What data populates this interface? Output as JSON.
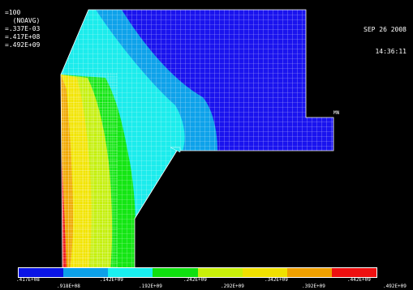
{
  "info": {
    "line1": "=100",
    "line2": "  (NOAVG)",
    "line3": "=.337E-03",
    "line4": "=.417E+08",
    "line5": "=.492E+09"
  },
  "datetime": {
    "date": "SEP 26 2008",
    "time": "14:36:11"
  },
  "marker": {
    "label": "MN"
  },
  "legend": {
    "colors": [
      "#0a14e6",
      "#0ca0e8",
      "#19f0f0",
      "#10e010",
      "#c8f00a",
      "#f0e000",
      "#f0a000",
      "#ee1010"
    ],
    "top_labels": [
      ".417E+08",
      ".142E+09",
      ".242E+09",
      ".342E+09",
      ".442E+09"
    ],
    "bottom_labels": [
      ".918E+08",
      ".192E+09",
      ".292E+09",
      ".392E+09",
      ".492E+09"
    ]
  }
}
